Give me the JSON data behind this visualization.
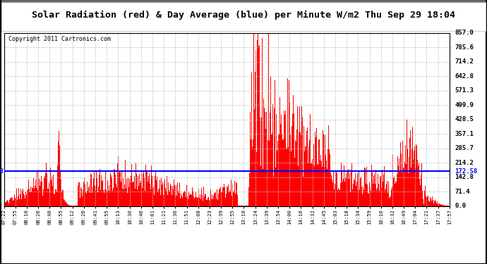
{
  "title": "Solar Radiation (red) & Day Average (blue) per Minute W/m2 Thu Sep 29 18:04",
  "copyright": "Copyright 2011 Cartronics.com",
  "ymax": 857.0,
  "ymin": 0.0,
  "yticks": [
    0.0,
    71.4,
    142.8,
    214.2,
    285.7,
    357.1,
    428.5,
    499.9,
    571.3,
    642.8,
    714.2,
    785.6,
    857.0
  ],
  "ytick_labels": [
    "0.0",
    "71.4",
    "142.8",
    "214.2",
    "285.7",
    "357.1",
    "428.5",
    "499.9",
    "571.3",
    "642.8",
    "714.2",
    "785.6",
    "857.0"
  ],
  "day_average": 172.58,
  "bar_color": "#ff0000",
  "avg_line_color": "#0000ff",
  "background_color": "#ffffff",
  "grid_color": "#c0c0c0",
  "title_fontsize": 10,
  "copyright_fontsize": 6.5,
  "xtick_labels": [
    "07:22",
    "07:55",
    "08:10",
    "08:26",
    "08:40",
    "08:55",
    "09:12",
    "09:26",
    "09:41",
    "09:55",
    "10:13",
    "10:30",
    "10:46",
    "11:01",
    "11:21",
    "11:36",
    "11:51",
    "12:08",
    "12:23",
    "12:39",
    "12:55",
    "13:10",
    "13:24",
    "13:39",
    "13:54",
    "14:00",
    "14:16",
    "14:32",
    "14:45",
    "15:03",
    "15:18",
    "15:34",
    "15:59",
    "16:16",
    "16:32",
    "16:49",
    "17:04",
    "17:21",
    "17:37",
    "17:57"
  ],
  "num_bars": 635,
  "seed": 7
}
